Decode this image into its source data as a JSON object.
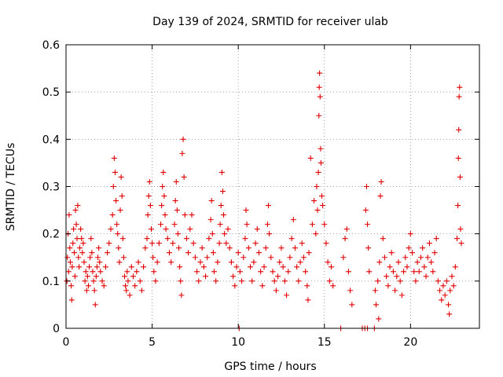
{
  "chart_data": {
    "type": "scatter",
    "title": "Day 139 of 2024, SRMTID for receiver ulab",
    "xlabel": "GPS time / hours",
    "ylabel": "SRMTID / TECUs",
    "xlim": [
      0,
      24
    ],
    "ylim": [
      0,
      0.6
    ],
    "xticks": [
      0,
      5,
      10,
      15,
      20
    ],
    "xtick_labels": [
      "0",
      "5",
      "10",
      "15",
      "20"
    ],
    "yticks": [
      0,
      0.1,
      0.2,
      0.3,
      0.4,
      0.5,
      0.6
    ],
    "ytick_labels": [
      "0",
      "0.1",
      "0.2",
      "0.3",
      "0.4",
      "0.5",
      "0.6"
    ],
    "grid": true,
    "marker": "+",
    "marker_color": "#e00000",
    "series": [
      {
        "name": "SRMTID",
        "points": [
          [
            0.05,
            0.1
          ],
          [
            0.08,
            0.15
          ],
          [
            0.12,
            0.2
          ],
          [
            0.15,
            0.12
          ],
          [
            0.18,
            0.24
          ],
          [
            0.22,
            0.17
          ],
          [
            0.25,
            0.14
          ],
          [
            0.3,
            0.09
          ],
          [
            0.33,
            0.06
          ],
          [
            0.36,
            0.13
          ],
          [
            0.4,
            0.18
          ],
          [
            0.44,
            0.21
          ],
          [
            0.48,
            0.16
          ],
          [
            0.52,
            0.11
          ],
          [
            0.55,
            0.25
          ],
          [
            0.6,
            0.22
          ],
          [
            0.64,
            0.19
          ],
          [
            0.68,
            0.26
          ],
          [
            0.72,
            0.15
          ],
          [
            0.76,
            0.13
          ],
          [
            0.8,
            0.17
          ],
          [
            0.85,
            0.21
          ],
          [
            0.9,
            0.19
          ],
          [
            0.95,
            0.16
          ],
          [
            1.0,
            0.18
          ],
          [
            1.05,
            0.14
          ],
          [
            1.1,
            0.1
          ],
          [
            1.15,
            0.12
          ],
          [
            1.2,
            0.08
          ],
          [
            1.25,
            0.11
          ],
          [
            1.3,
            0.09
          ],
          [
            1.35,
            0.13
          ],
          [
            1.4,
            0.15
          ],
          [
            1.45,
            0.19
          ],
          [
            1.5,
            0.16
          ],
          [
            1.55,
            0.12
          ],
          [
            1.6,
            0.1
          ],
          [
            1.65,
            0.08
          ],
          [
            1.7,
            0.05
          ],
          [
            1.75,
            0.11
          ],
          [
            1.8,
            0.13
          ],
          [
            1.85,
            0.15
          ],
          [
            1.9,
            0.17
          ],
          [
            1.95,
            0.14
          ],
          [
            2.0,
            0.12
          ],
          [
            2.1,
            0.1
          ],
          [
            2.2,
            0.09
          ],
          [
            2.3,
            0.13
          ],
          [
            2.4,
            0.16
          ],
          [
            2.5,
            0.18
          ],
          [
            2.6,
            0.21
          ],
          [
            2.7,
            0.24
          ],
          [
            2.75,
            0.3
          ],
          [
            2.8,
            0.36
          ],
          [
            2.85,
            0.33
          ],
          [
            2.9,
            0.27
          ],
          [
            2.95,
            0.22
          ],
          [
            3.0,
            0.2
          ],
          [
            3.05,
            0.17
          ],
          [
            3.1,
            0.14
          ],
          [
            3.15,
            0.25
          ],
          [
            3.2,
            0.32
          ],
          [
            3.25,
            0.28
          ],
          [
            3.3,
            0.19
          ],
          [
            3.35,
            0.15
          ],
          [
            3.4,
            0.11
          ],
          [
            3.45,
            0.09
          ],
          [
            3.5,
            0.08
          ],
          [
            3.55,
            0.12
          ],
          [
            3.6,
            0.1
          ],
          [
            3.7,
            0.07
          ],
          [
            3.8,
            0.13
          ],
          [
            3.9,
            0.11
          ],
          [
            4.0,
            0.09
          ],
          [
            4.1,
            0.12
          ],
          [
            4.2,
            0.14
          ],
          [
            4.3,
            0.1
          ],
          [
            4.4,
            0.08
          ],
          [
            4.5,
            0.13
          ],
          [
            4.6,
            0.17
          ],
          [
            4.7,
            0.19
          ],
          [
            4.75,
            0.24
          ],
          [
            4.8,
            0.28
          ],
          [
            4.85,
            0.31
          ],
          [
            4.9,
            0.26
          ],
          [
            4.95,
            0.21
          ],
          [
            5.0,
            0.18
          ],
          [
            5.05,
            0.15
          ],
          [
            5.1,
            0.12
          ],
          [
            5.2,
            0.1
          ],
          [
            5.3,
            0.14
          ],
          [
            5.4,
            0.18
          ],
          [
            5.5,
            0.22
          ],
          [
            5.55,
            0.26
          ],
          [
            5.6,
            0.3
          ],
          [
            5.65,
            0.33
          ],
          [
            5.7,
            0.28
          ],
          [
            5.75,
            0.24
          ],
          [
            5.8,
            0.21
          ],
          [
            5.9,
            0.19
          ],
          [
            6.0,
            0.16
          ],
          [
            6.1,
            0.14
          ],
          [
            6.2,
            0.18
          ],
          [
            6.3,
            0.22
          ],
          [
            6.35,
            0.27
          ],
          [
            6.4,
            0.31
          ],
          [
            6.45,
            0.25
          ],
          [
            6.5,
            0.2
          ],
          [
            6.55,
            0.17
          ],
          [
            6.6,
            0.13
          ],
          [
            6.65,
            0.1
          ],
          [
            6.7,
            0.07
          ],
          [
            6.75,
            0.37
          ],
          [
            6.8,
            0.4
          ],
          [
            6.85,
            0.32
          ],
          [
            6.9,
            0.24
          ],
          [
            7.0,
            0.19
          ],
          [
            7.1,
            0.16
          ],
          [
            7.2,
            0.21
          ],
          [
            7.3,
            0.24
          ],
          [
            7.4,
            0.18
          ],
          [
            7.5,
            0.15
          ],
          [
            7.6,
            0.12
          ],
          [
            7.7,
            0.1
          ],
          [
            7.8,
            0.14
          ],
          [
            7.9,
            0.17
          ],
          [
            8.0,
            0.13
          ],
          [
            8.1,
            0.11
          ],
          [
            8.2,
            0.15
          ],
          [
            8.3,
            0.19
          ],
          [
            8.4,
            0.23
          ],
          [
            8.45,
            0.27
          ],
          [
            8.5,
            0.2
          ],
          [
            8.55,
            0.16
          ],
          [
            8.6,
            0.12
          ],
          [
            8.7,
            0.1
          ],
          [
            8.8,
            0.14
          ],
          [
            8.9,
            0.18
          ],
          [
            8.95,
            0.22
          ],
          [
            9.0,
            0.26
          ],
          [
            9.05,
            0.33
          ],
          [
            9.1,
            0.29
          ],
          [
            9.15,
            0.24
          ],
          [
            9.2,
            0.2
          ],
          [
            9.3,
            0.18
          ],
          [
            9.4,
            0.21
          ],
          [
            9.5,
            0.17
          ],
          [
            9.6,
            0.14
          ],
          [
            9.7,
            0.11
          ],
          [
            9.8,
            0.09
          ],
          [
            9.9,
            0.13
          ],
          [
            10.0,
            0.16
          ],
          [
            10.05,
            0.0
          ],
          [
            10.1,
            0.12
          ],
          [
            10.2,
            0.1
          ],
          [
            10.3,
            0.15
          ],
          [
            10.4,
            0.19
          ],
          [
            10.45,
            0.25
          ],
          [
            10.5,
            0.22
          ],
          [
            10.6,
            0.17
          ],
          [
            10.7,
            0.13
          ],
          [
            10.8,
            0.1
          ],
          [
            10.9,
            0.14
          ],
          [
            11.0,
            0.18
          ],
          [
            11.1,
            0.21
          ],
          [
            11.2,
            0.16
          ],
          [
            11.3,
            0.12
          ],
          [
            11.4,
            0.09
          ],
          [
            11.5,
            0.13
          ],
          [
            11.6,
            0.17
          ],
          [
            11.7,
            0.22
          ],
          [
            11.75,
            0.26
          ],
          [
            11.8,
            0.2
          ],
          [
            11.9,
            0.15
          ],
          [
            12.0,
            0.12
          ],
          [
            12.1,
            0.1
          ],
          [
            12.2,
            0.08
          ],
          [
            12.3,
            0.11
          ],
          [
            12.4,
            0.14
          ],
          [
            12.5,
            0.17
          ],
          [
            12.6,
            0.13
          ],
          [
            12.7,
            0.1
          ],
          [
            12.8,
            0.07
          ],
          [
            12.9,
            0.12
          ],
          [
            13.0,
            0.15
          ],
          [
            13.1,
            0.19
          ],
          [
            13.2,
            0.23
          ],
          [
            13.3,
            0.17
          ],
          [
            13.4,
            0.13
          ],
          [
            13.5,
            0.1
          ],
          [
            13.6,
            0.14
          ],
          [
            13.7,
            0.18
          ],
          [
            13.8,
            0.15
          ],
          [
            13.9,
            0.12
          ],
          [
            14.0,
            0.09
          ],
          [
            14.05,
            0.06
          ],
          [
            14.1,
            0.16
          ],
          [
            14.2,
            0.36
          ],
          [
            14.3,
            0.22
          ],
          [
            14.4,
            0.27
          ],
          [
            14.5,
            0.2
          ],
          [
            14.55,
            0.3
          ],
          [
            14.6,
            0.25
          ],
          [
            14.65,
            0.33
          ],
          [
            14.68,
            0.45
          ],
          [
            14.7,
            0.51
          ],
          [
            14.72,
            0.54
          ],
          [
            14.75,
            0.49
          ],
          [
            14.78,
            0.38
          ],
          [
            14.8,
            0.35
          ],
          [
            14.85,
            0.28
          ],
          [
            14.9,
            0.26
          ],
          [
            15.0,
            0.22
          ],
          [
            15.1,
            0.18
          ],
          [
            15.2,
            0.14
          ],
          [
            15.3,
            0.1
          ],
          [
            15.4,
            0.13
          ],
          [
            15.5,
            0.09
          ],
          [
            15.95,
            0.0
          ],
          [
            16.1,
            0.15
          ],
          [
            16.2,
            0.19
          ],
          [
            16.3,
            0.21
          ],
          [
            16.4,
            0.12
          ],
          [
            16.5,
            0.08
          ],
          [
            16.6,
            0.05
          ],
          [
            17.2,
            0.0
          ],
          [
            17.35,
            0.0
          ],
          [
            17.5,
            0.0
          ],
          [
            17.4,
            0.25
          ],
          [
            17.45,
            0.3
          ],
          [
            17.5,
            0.22
          ],
          [
            17.55,
            0.17
          ],
          [
            17.6,
            0.12
          ],
          [
            17.9,
            0.0
          ],
          [
            17.95,
            0.08
          ],
          [
            18.0,
            0.05
          ],
          [
            18.1,
            0.1
          ],
          [
            18.15,
            0.02
          ],
          [
            18.2,
            0.14
          ],
          [
            18.25,
            0.28
          ],
          [
            18.3,
            0.31
          ],
          [
            18.4,
            0.19
          ],
          [
            18.5,
            0.15
          ],
          [
            18.6,
            0.11
          ],
          [
            18.7,
            0.09
          ],
          [
            18.8,
            0.13
          ],
          [
            18.9,
            0.16
          ],
          [
            19.0,
            0.12
          ],
          [
            19.1,
            0.08
          ],
          [
            19.2,
            0.11
          ],
          [
            19.3,
            0.14
          ],
          [
            19.4,
            0.1
          ],
          [
            19.5,
            0.07
          ],
          [
            19.6,
            0.12
          ],
          [
            19.7,
            0.15
          ],
          [
            19.8,
            0.13
          ],
          [
            19.9,
            0.17
          ],
          [
            20.0,
            0.2
          ],
          [
            20.1,
            0.16
          ],
          [
            20.2,
            0.12
          ],
          [
            20.3,
            0.1
          ],
          [
            20.4,
            0.14
          ],
          [
            20.5,
            0.12
          ],
          [
            20.6,
            0.15
          ],
          [
            20.7,
            0.17
          ],
          [
            20.8,
            0.13
          ],
          [
            20.9,
            0.11
          ],
          [
            21.0,
            0.15
          ],
          [
            21.1,
            0.18
          ],
          [
            21.2,
            0.14
          ],
          [
            21.3,
            0.12
          ],
          [
            21.4,
            0.16
          ],
          [
            21.5,
            0.19
          ],
          [
            21.6,
            0.1
          ],
          [
            21.7,
            0.08
          ],
          [
            21.8,
            0.06
          ],
          [
            21.9,
            0.09
          ],
          [
            22.0,
            0.07
          ],
          [
            22.1,
            0.1
          ],
          [
            22.2,
            0.05
          ],
          [
            22.25,
            0.03
          ],
          [
            22.3,
            0.08
          ],
          [
            22.4,
            0.11
          ],
          [
            22.5,
            0.09
          ],
          [
            22.6,
            0.13
          ],
          [
            22.7,
            0.19
          ],
          [
            22.75,
            0.26
          ],
          [
            22.78,
            0.36
          ],
          [
            22.8,
            0.42
          ],
          [
            22.82,
            0.49
          ],
          [
            22.85,
            0.51
          ],
          [
            22.88,
            0.32
          ],
          [
            22.9,
            0.21
          ],
          [
            22.95,
            0.18
          ]
        ]
      }
    ]
  }
}
